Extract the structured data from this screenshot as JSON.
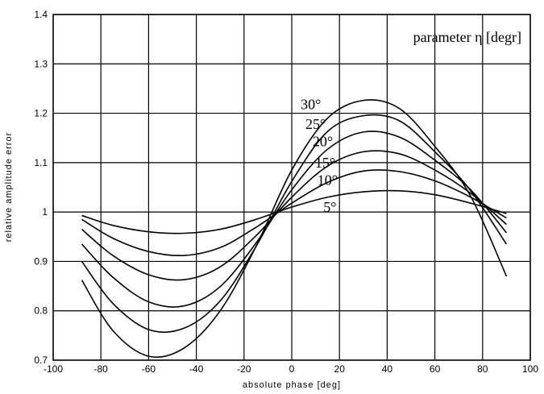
{
  "chart_data": {
    "type": "line",
    "xlabel": "absolute phase   [deg]",
    "ylabel": "relative amplitude error",
    "xlim": [
      -100,
      100
    ],
    "ylim": [
      0.7,
      1.4
    ],
    "xticks": [
      -100,
      -80,
      -60,
      -40,
      -20,
      0,
      20,
      40,
      60,
      80,
      100
    ],
    "xtick_labels": [
      "-100",
      "-80",
      "-60",
      "-40",
      "-20",
      "0",
      "20",
      "40",
      "60",
      "80",
      "100"
    ],
    "yticks": [
      0.7,
      0.8,
      0.9,
      1.0,
      1.1,
      1.2,
      1.3,
      1.4
    ],
    "ytick_labels": [
      "0.7",
      "0.8",
      "0.9",
      "1",
      "1.1",
      "1.2",
      "1.3",
      "1.4"
    ],
    "grid": true,
    "legend_title": "parameter η  [degr]",
    "legend_placement": "top-right",
    "series": [
      {
        "name": "5°",
        "x": [
          -88,
          -75,
          -60,
          -45,
          -30,
          -15,
          0,
          15,
          30,
          45,
          60,
          75,
          90
        ],
        "y": [
          0.993,
          0.973,
          0.96,
          0.957,
          0.965,
          0.985,
          1.01,
          1.03,
          1.041,
          1.043,
          1.035,
          1.018,
          0.997
        ]
      },
      {
        "name": "10°",
        "x": [
          -88,
          -75,
          -60,
          -45,
          -30,
          -15,
          0,
          15,
          30,
          45,
          60,
          75,
          90
        ],
        "y": [
          0.985,
          0.947,
          0.92,
          0.912,
          0.928,
          0.969,
          1.018,
          1.06,
          1.083,
          1.082,
          1.063,
          1.03,
          0.988
        ]
      },
      {
        "name": "15°",
        "x": [
          -88,
          -75,
          -60,
          -45,
          -30,
          -15,
          0,
          15,
          30,
          45,
          60,
          75,
          90
        ],
        "y": [
          0.965,
          0.912,
          0.873,
          0.863,
          0.889,
          0.952,
          1.03,
          1.093,
          1.122,
          1.118,
          1.085,
          1.038,
          0.975
        ]
      },
      {
        "name": "20°",
        "x": [
          -88,
          -75,
          -60,
          -45,
          -30,
          -15,
          0,
          15,
          30,
          45,
          60,
          75,
          90
        ],
        "y": [
          0.935,
          0.868,
          0.818,
          0.81,
          0.849,
          0.937,
          1.045,
          1.127,
          1.162,
          1.152,
          1.105,
          1.045,
          0.958
        ]
      },
      {
        "name": "25°",
        "x": [
          -88,
          -75,
          -60,
          -45,
          -30,
          -15,
          0,
          15,
          30,
          45,
          60,
          75,
          90
        ],
        "y": [
          0.9,
          0.815,
          0.762,
          0.765,
          0.82,
          0.93,
          1.062,
          1.163,
          1.195,
          1.185,
          1.122,
          1.043,
          0.935
        ]
      },
      {
        "name": "30°",
        "x": [
          -88,
          -75,
          -60,
          -45,
          -30,
          -15,
          0,
          15,
          30,
          45,
          60,
          75,
          90
        ],
        "y": [
          0.862,
          0.76,
          0.708,
          0.725,
          0.8,
          0.93,
          1.085,
          1.19,
          1.226,
          1.21,
          1.133,
          1.032,
          0.87
        ]
      }
    ]
  }
}
